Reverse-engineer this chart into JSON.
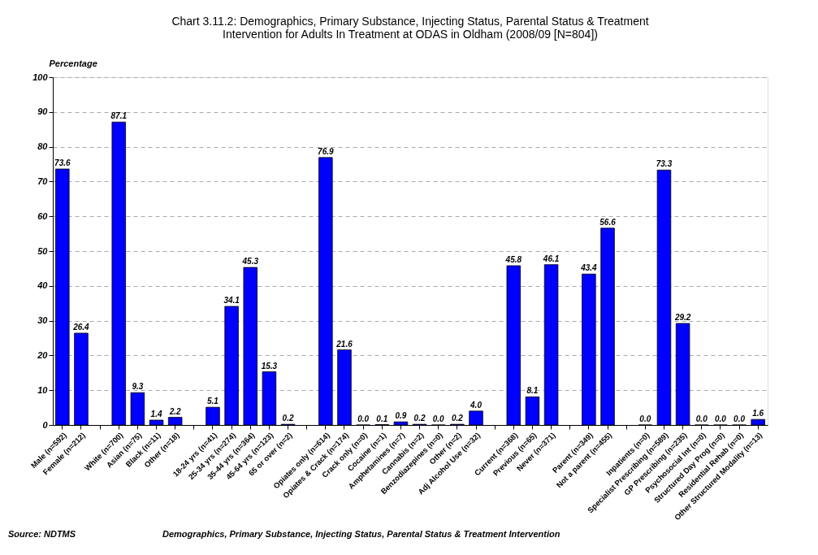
{
  "chart_data": {
    "type": "bar",
    "title": "Chart 3.11.2: Demographics, Primary Substance, Injecting Status, Parental Status & Treatment Intervention for Adults In Treatment at ODAS in Oldham (2008/09 [N=804])",
    "ylabel": "Percentage",
    "categories": [
      "Male (n=592)",
      "Female (n=212)",
      null,
      "White (n=700)",
      "Asian (n=75)",
      "Black (n=11)",
      "Other (n=18)",
      null,
      "18-24 yrs (n=41)",
      "25-34 yrs (n=274)",
      "35-44 yrs (n=364)",
      "45-64 yrs (n=123)",
      "65 or over (n=2)",
      null,
      "Opiates only (n=614)",
      "Opiates & Crack (n=174)",
      "Crack only (n=0)",
      "Cocaine (n=1)",
      "Amphetamines (n=7)",
      "Cannabis (n=2)",
      "Benzodiazepines (n=0)",
      "Other (n=2)",
      "Adj Alcohol Use (n=32)",
      null,
      "Current (n=368)",
      "Previous (n=65)",
      "Never (n=371)",
      null,
      "Parent (n=349)",
      "Not a parent (n=455)",
      null,
      "Inpatients (n=0)",
      "Specialist Prescribing (n=589)",
      "GP Prescribing (n=235)",
      "Psychosocial Int (n=0)",
      "Structured Day Prog (n=0)",
      "Residential Rehab (n=0)",
      "Other Structured Modality (n=13)"
    ],
    "values": [
      73.6,
      26.4,
      null,
      87.1,
      9.3,
      1.4,
      2.2,
      null,
      5.1,
      34.1,
      45.3,
      15.3,
      0.2,
      null,
      76.9,
      21.6,
      0.0,
      0.1,
      0.9,
      0.2,
      0.0,
      0.2,
      4.0,
      null,
      45.8,
      8.1,
      46.1,
      null,
      43.4,
      56.6,
      null,
      0.0,
      73.3,
      29.2,
      0.0,
      0.0,
      0.0,
      1.6
    ],
    "color": "#0000ff",
    "ylim": [
      0,
      100
    ],
    "yticks": [
      0,
      10,
      20,
      30,
      40,
      50,
      60,
      70,
      80,
      90,
      100
    ],
    "grid": "y",
    "value_labels": [
      "73.6",
      "26.4",
      null,
      "87.1",
      "9.3",
      "1.4",
      "2.2",
      null,
      "5.1",
      "34.1",
      "45.3",
      "15.3",
      "0.2",
      null,
      "76.9",
      "21.6",
      "0.0",
      "0.1",
      "0.9",
      "0.2",
      "0.0",
      "0.2",
      "4.0",
      null,
      "45.8",
      "8.1",
      "46.1",
      null,
      "43.4",
      "56.6",
      null,
      "0.0",
      "73.3",
      "29.2",
      "0.0",
      "0.0",
      "0.0",
      "1.6"
    ],
    "annotations": [
      "Source: NDTMS",
      "Demographics, Primary Substance, Injecting Status, Parental Status & Treatment Intervention"
    ]
  }
}
